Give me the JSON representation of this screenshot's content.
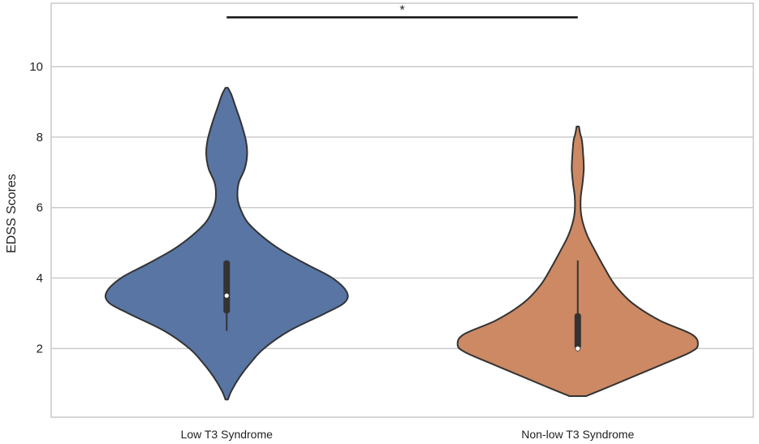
{
  "chart_data": {
    "type": "violin",
    "ylabel": "EDSS Scores",
    "ylim": [
      0.05,
      11.8
    ],
    "yticks": [
      2,
      4,
      6,
      8,
      10
    ],
    "grid": true,
    "categories": [
      "Low T3 Syndrome",
      "Non-low T3 Syndrome"
    ],
    "colors": {
      "Low T3 Syndrome": "#5875a4",
      "Non-low T3 Syndrome": "#cc8963",
      "outline": "#333333",
      "grid": "#cccccc",
      "frame": "#c8c8c8"
    },
    "violins": [
      {
        "category": "Low T3 Syndrome",
        "density": [
          [
            0.55,
            0.01
          ],
          [
            0.8,
            0.04
          ],
          [
            1.2,
            0.11
          ],
          [
            1.6,
            0.2
          ],
          [
            2.0,
            0.31
          ],
          [
            2.5,
            0.52
          ],
          [
            3.0,
            0.82
          ],
          [
            3.3,
            0.98
          ],
          [
            3.6,
            1.0
          ],
          [
            4.0,
            0.88
          ],
          [
            4.4,
            0.66
          ],
          [
            4.8,
            0.45
          ],
          [
            5.2,
            0.29
          ],
          [
            5.6,
            0.17
          ],
          [
            6.0,
            0.11
          ],
          [
            6.3,
            0.09
          ],
          [
            6.7,
            0.1
          ],
          [
            7.1,
            0.15
          ],
          [
            7.5,
            0.17
          ],
          [
            7.9,
            0.16
          ],
          [
            8.4,
            0.12
          ],
          [
            8.9,
            0.07
          ],
          [
            9.2,
            0.04
          ],
          [
            9.4,
            0.01
          ]
        ],
        "whisker": [
          2.5,
          4.5
        ],
        "iqr": [
          3.0,
          4.5
        ],
        "median": 3.5
      },
      {
        "category": "Non-low T3 Syndrome",
        "density": [
          [
            0.65,
            0.07
          ],
          [
            0.9,
            0.25
          ],
          [
            1.2,
            0.46
          ],
          [
            1.6,
            0.74
          ],
          [
            1.9,
            0.94
          ],
          [
            2.1,
            1.0
          ],
          [
            2.4,
            0.95
          ],
          [
            2.8,
            0.68
          ],
          [
            3.3,
            0.45
          ],
          [
            3.8,
            0.31
          ],
          [
            4.3,
            0.22
          ],
          [
            4.8,
            0.14
          ],
          [
            5.2,
            0.08
          ],
          [
            5.6,
            0.04
          ],
          [
            5.9,
            0.025
          ],
          [
            6.3,
            0.025
          ],
          [
            6.7,
            0.04
          ],
          [
            7.1,
            0.05
          ],
          [
            7.5,
            0.045
          ],
          [
            7.9,
            0.035
          ],
          [
            8.1,
            0.02
          ],
          [
            8.3,
            0.01
          ]
        ],
        "whisker": [
          2.0,
          4.5
        ],
        "iqr": [
          2.0,
          3.0
        ],
        "median": 2.0
      }
    ],
    "annotation": {
      "text": "*",
      "y": 11.4,
      "between": [
        "Low T3 Syndrome",
        "Non-low T3 Syndrome"
      ]
    }
  }
}
